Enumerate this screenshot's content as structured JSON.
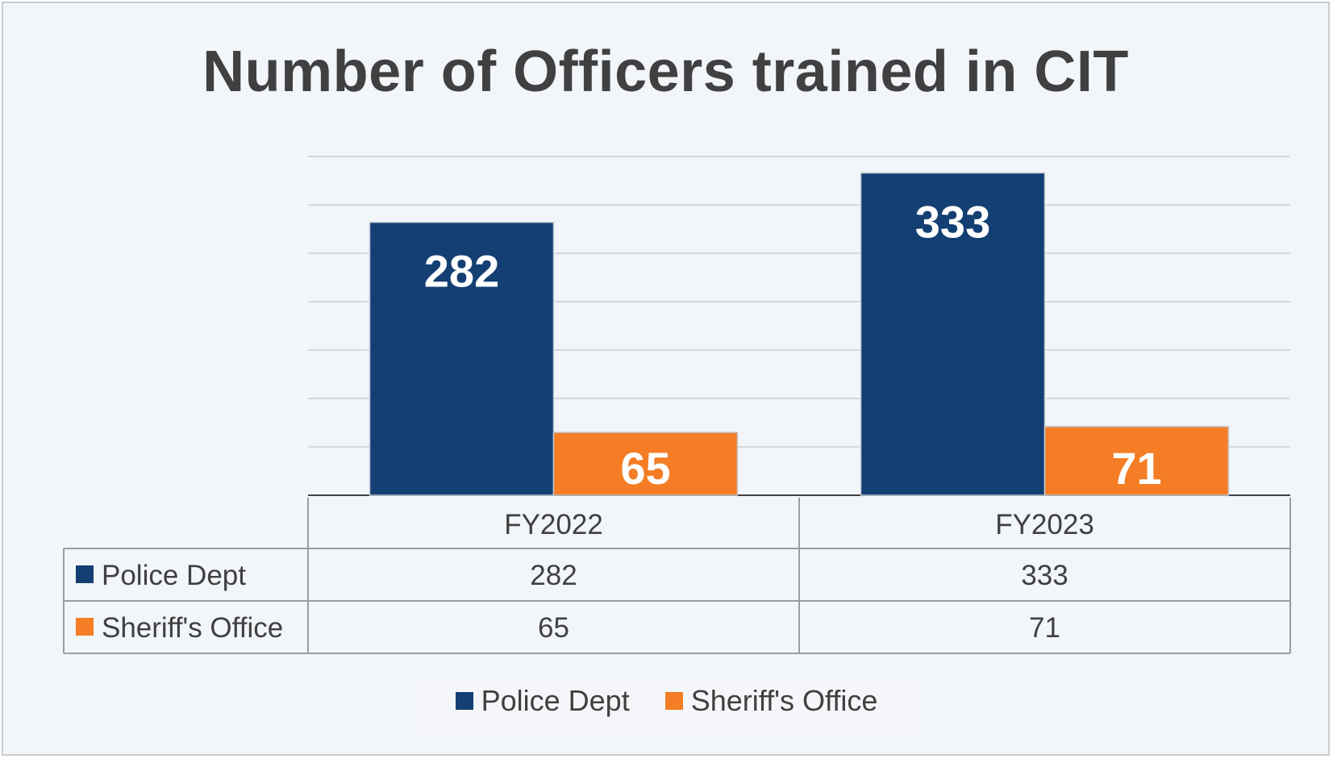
{
  "chart_data": {
    "type": "bar",
    "title": "Number of Officers trained in CIT",
    "categories": [
      "FY2022",
      "FY2023"
    ],
    "series": [
      {
        "name": "Police Dept",
        "values": [
          282,
          333
        ],
        "color": "#133f73"
      },
      {
        "name": "Sheriff's Office",
        "values": [
          65,
          71
        ],
        "color": "#f47d25"
      }
    ],
    "ylim": [
      0,
      350
    ],
    "grid": true,
    "data_table": true,
    "legend_position": "bottom"
  }
}
